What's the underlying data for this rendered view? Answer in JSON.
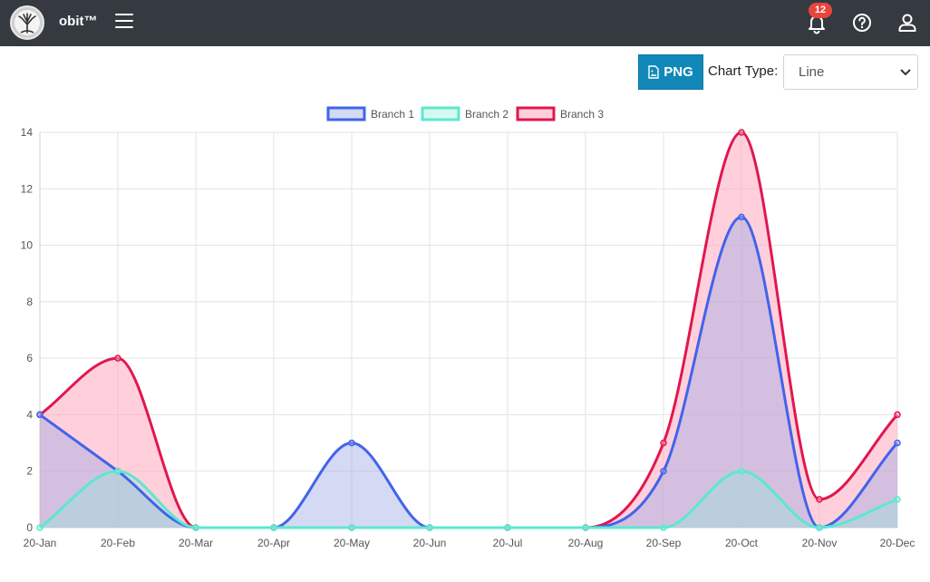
{
  "header": {
    "brand": "obit™",
    "notification_count": "12"
  },
  "toolbar": {
    "png_label": "PNG",
    "chart_type_label": "Chart Type:",
    "chart_type_value": "Line"
  },
  "colors": {
    "topbar": "#343a40",
    "png_button": "#1188b8",
    "badge": "#e8453c"
  },
  "icons": [
    "logo-tree-icon",
    "hamburger-menu-icon",
    "bell-icon",
    "help-circle-icon",
    "user-icon",
    "file-image-icon",
    "chevron-down-icon"
  ],
  "chart_data": {
    "type": "line",
    "categories": [
      "20-Jan",
      "20-Feb",
      "20-Mar",
      "20-Apr",
      "20-May",
      "20-Jun",
      "20-Jul",
      "20-Aug",
      "20-Sep",
      "20-Oct",
      "20-Nov",
      "20-Dec"
    ],
    "series": [
      {
        "name": "Branch 1",
        "color": "#4263eb",
        "fill": "rgba(160,170,230,0.45)",
        "values": [
          4,
          2,
          0,
          0,
          3,
          0,
          0,
          0,
          2,
          11,
          0,
          3
        ]
      },
      {
        "name": "Branch 2",
        "color": "#5ce8cf",
        "fill": "rgba(140,235,215,0.35)",
        "values": [
          0,
          2,
          0,
          0,
          0,
          0,
          0,
          0,
          0,
          2,
          0,
          1
        ]
      },
      {
        "name": "Branch 3",
        "color": "#e0174f",
        "fill": "rgba(255,170,190,0.55)",
        "values": [
          4,
          6,
          0,
          0,
          0,
          0,
          0,
          0,
          3,
          14,
          1,
          4
        ]
      }
    ],
    "ylim": [
      0,
      14
    ],
    "yticks": [
      0,
      2,
      4,
      6,
      8,
      10,
      12,
      14
    ],
    "grid": true,
    "legend": "top-center",
    "smooth": true
  }
}
